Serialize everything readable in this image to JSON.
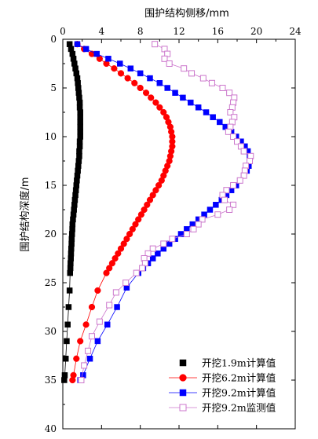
{
  "chart_data": {
    "type": "line",
    "xlabel": "围护结构侧移/mm",
    "ylabel": "围护结构深度/m",
    "xlim": [
      0,
      24
    ],
    "ylim": [
      40,
      0
    ],
    "x_ticks": [
      0,
      4,
      8,
      12,
      16,
      20,
      24
    ],
    "y_ticks": [
      0,
      5,
      10,
      15,
      20,
      25,
      30,
      35,
      40
    ],
    "legend_position": "bottom-right",
    "x_axis_position": "top",
    "series": [
      {
        "name": "开挖1.9m计算值",
        "color": "#000000",
        "marker": "square-filled",
        "points": [
          [
            0.7,
            0.5
          ],
          [
            0.85,
            1
          ],
          [
            1.0,
            1.5
          ],
          [
            1.1,
            2
          ],
          [
            1.2,
            2.5
          ],
          [
            1.3,
            3
          ],
          [
            1.4,
            3.5
          ],
          [
            1.5,
            4
          ],
          [
            1.55,
            4.5
          ],
          [
            1.6,
            5
          ],
          [
            1.65,
            5.5
          ],
          [
            1.7,
            6
          ],
          [
            1.75,
            6.5
          ],
          [
            1.75,
            7
          ],
          [
            1.8,
            7.5
          ],
          [
            1.8,
            8
          ],
          [
            1.8,
            8.5
          ],
          [
            1.8,
            9
          ],
          [
            1.8,
            9.5
          ],
          [
            1.8,
            10
          ],
          [
            1.75,
            10.5
          ],
          [
            1.75,
            11
          ],
          [
            1.7,
            11.5
          ],
          [
            1.7,
            12
          ],
          [
            1.65,
            12.5
          ],
          [
            1.6,
            13
          ],
          [
            1.55,
            13.5
          ],
          [
            1.5,
            14
          ],
          [
            1.45,
            14.5
          ],
          [
            1.4,
            15
          ],
          [
            1.35,
            15.5
          ],
          [
            1.3,
            16
          ],
          [
            1.25,
            16.5
          ],
          [
            1.2,
            17
          ],
          [
            1.15,
            17.5
          ],
          [
            1.1,
            18
          ],
          [
            1.05,
            18.5
          ],
          [
            1.0,
            19
          ],
          [
            0.98,
            19.5
          ],
          [
            0.95,
            20
          ],
          [
            0.92,
            20.5
          ],
          [
            0.9,
            21
          ],
          [
            0.87,
            21.5
          ],
          [
            0.85,
            22
          ],
          [
            0.83,
            22.5
          ],
          [
            0.8,
            23
          ],
          [
            0.78,
            23.5
          ],
          [
            0.75,
            24
          ],
          [
            0.7,
            25.8
          ],
          [
            0.6,
            27.5
          ],
          [
            0.5,
            29.3
          ],
          [
            0.4,
            31
          ],
          [
            0.3,
            32.8
          ],
          [
            0.2,
            34.5
          ],
          [
            0.15,
            35
          ]
        ]
      },
      {
        "name": "开挖6.2m计算值",
        "color": "#ff0000",
        "marker": "circle-filled",
        "points": [
          [
            1.5,
            0.5
          ],
          [
            2.2,
            1
          ],
          [
            3.0,
            1.5
          ],
          [
            3.8,
            2
          ],
          [
            4.5,
            2.5
          ],
          [
            5.3,
            3
          ],
          [
            6.0,
            3.5
          ],
          [
            6.7,
            4
          ],
          [
            7.4,
            4.5
          ],
          [
            8.0,
            5
          ],
          [
            8.6,
            5.5
          ],
          [
            9.1,
            6
          ],
          [
            9.6,
            6.5
          ],
          [
            10.0,
            7
          ],
          [
            10.4,
            7.5
          ],
          [
            10.7,
            8
          ],
          [
            10.9,
            8.5
          ],
          [
            11.1,
            9
          ],
          [
            11.2,
            9.5
          ],
          [
            11.3,
            10
          ],
          [
            11.3,
            10.5
          ],
          [
            11.3,
            11
          ],
          [
            11.2,
            11.5
          ],
          [
            11.1,
            12
          ],
          [
            11.0,
            12.5
          ],
          [
            10.8,
            13
          ],
          [
            10.6,
            13.5
          ],
          [
            10.4,
            14
          ],
          [
            10.2,
            14.5
          ],
          [
            9.9,
            15
          ],
          [
            9.6,
            15.5
          ],
          [
            9.3,
            16
          ],
          [
            9.0,
            16.5
          ],
          [
            8.7,
            17
          ],
          [
            8.4,
            17.5
          ],
          [
            8.1,
            18
          ],
          [
            7.8,
            18.5
          ],
          [
            7.5,
            19
          ],
          [
            7.2,
            19.5
          ],
          [
            6.9,
            20
          ],
          [
            6.6,
            20.5
          ],
          [
            6.3,
            21
          ],
          [
            6.0,
            21.5
          ],
          [
            5.7,
            22
          ],
          [
            5.4,
            22.5
          ],
          [
            5.1,
            23
          ],
          [
            4.8,
            23.5
          ],
          [
            4.5,
            24
          ],
          [
            3.6,
            25.8
          ],
          [
            3.0,
            27.5
          ],
          [
            2.4,
            29.3
          ],
          [
            1.8,
            31
          ],
          [
            1.4,
            32.8
          ],
          [
            1.1,
            34.5
          ],
          [
            1.0,
            35
          ]
        ]
      },
      {
        "name": "开挖9.2m计算值",
        "color": "#0000ff",
        "marker": "square-filled",
        "points": [
          [
            1.5,
            0.5
          ],
          [
            2.4,
            1
          ],
          [
            3.5,
            1.5
          ],
          [
            4.7,
            2
          ],
          [
            5.9,
            2.5
          ],
          [
            7.0,
            3
          ],
          [
            8.0,
            3.5
          ],
          [
            9.0,
            4
          ],
          [
            10.0,
            4.5
          ],
          [
            10.8,
            5
          ],
          [
            11.6,
            5.5
          ],
          [
            12.4,
            6
          ],
          [
            13.2,
            6.5
          ],
          [
            14.0,
            7
          ],
          [
            14.8,
            7.5
          ],
          [
            15.5,
            8
          ],
          [
            16.2,
            8.5
          ],
          [
            16.8,
            9
          ],
          [
            17.4,
            9.5
          ],
          [
            17.9,
            10
          ],
          [
            18.4,
            10.5
          ],
          [
            18.8,
            11
          ],
          [
            19.1,
            11.5
          ],
          [
            19.3,
            12
          ],
          [
            19.3,
            12.5
          ],
          [
            19.2,
            13
          ],
          [
            19.0,
            13.5
          ],
          [
            18.7,
            14
          ],
          [
            18.3,
            14.5
          ],
          [
            17.9,
            15
          ],
          [
            17.4,
            15.5
          ],
          [
            16.9,
            16
          ],
          [
            16.4,
            16.5
          ],
          [
            15.8,
            17
          ],
          [
            15.2,
            17.5
          ],
          [
            14.6,
            18
          ],
          [
            14.0,
            18.5
          ],
          [
            13.4,
            19
          ],
          [
            12.8,
            19.5
          ],
          [
            12.2,
            20
          ],
          [
            11.6,
            20.5
          ],
          [
            11.0,
            21
          ],
          [
            10.4,
            21.5
          ],
          [
            9.8,
            22
          ],
          [
            9.3,
            22.5
          ],
          [
            8.8,
            23
          ],
          [
            8.3,
            23.5
          ],
          [
            7.8,
            24
          ],
          [
            6.6,
            25.5
          ],
          [
            5.6,
            27.5
          ],
          [
            4.6,
            29.3
          ],
          [
            3.6,
            31
          ],
          [
            2.8,
            32.8
          ],
          [
            2.1,
            34.5
          ],
          [
            1.8,
            35
          ]
        ]
      },
      {
        "name": "开挖9.2m监测值",
        "color": "#cc77cc",
        "marker": "square-open",
        "points": [
          [
            9.5,
            0.5
          ],
          [
            10.5,
            1
          ],
          [
            10.8,
            1.5
          ],
          [
            10.5,
            2
          ],
          [
            11.0,
            2.5
          ],
          [
            12.5,
            3
          ],
          [
            13.3,
            3.5
          ],
          [
            14.5,
            4
          ],
          [
            15.4,
            4.5
          ],
          [
            16.5,
            5
          ],
          [
            17.2,
            5.5
          ],
          [
            17.7,
            6
          ],
          [
            17.6,
            6.5
          ],
          [
            17.5,
            7
          ],
          [
            17.3,
            7.5
          ],
          [
            17.7,
            8
          ],
          [
            17.5,
            8.5
          ],
          [
            17.3,
            9
          ],
          [
            17.1,
            9.5
          ],
          [
            17.6,
            10
          ],
          [
            18.0,
            10.5
          ],
          [
            18.4,
            11
          ],
          [
            18.7,
            11.5
          ],
          [
            19.4,
            12
          ],
          [
            19.3,
            12.5
          ],
          [
            18.9,
            13
          ],
          [
            18.8,
            13.5
          ],
          [
            18.7,
            14
          ],
          [
            18.3,
            14.5
          ],
          [
            17.6,
            15
          ],
          [
            16.9,
            15.5
          ],
          [
            16.5,
            16
          ],
          [
            16.7,
            16.5
          ],
          [
            17.6,
            17
          ],
          [
            17.2,
            17.5
          ],
          [
            16.0,
            18
          ],
          [
            14.4,
            18.5
          ],
          [
            14.0,
            19
          ],
          [
            13.5,
            19.5
          ],
          [
            12.8,
            20
          ],
          [
            11.3,
            20.5
          ],
          [
            10.4,
            21
          ],
          [
            9.3,
            21.5
          ],
          [
            8.8,
            22
          ],
          [
            8.4,
            22.5
          ],
          [
            8.5,
            23
          ],
          [
            8.2,
            23.5
          ],
          [
            7.6,
            24
          ],
          [
            6.5,
            25
          ],
          [
            5.5,
            26
          ],
          [
            4.8,
            27.3
          ],
          [
            3.8,
            29
          ],
          [
            3.0,
            30.5
          ],
          [
            2.6,
            32
          ],
          [
            2.2,
            33.5
          ],
          [
            1.9,
            35
          ]
        ]
      }
    ]
  }
}
